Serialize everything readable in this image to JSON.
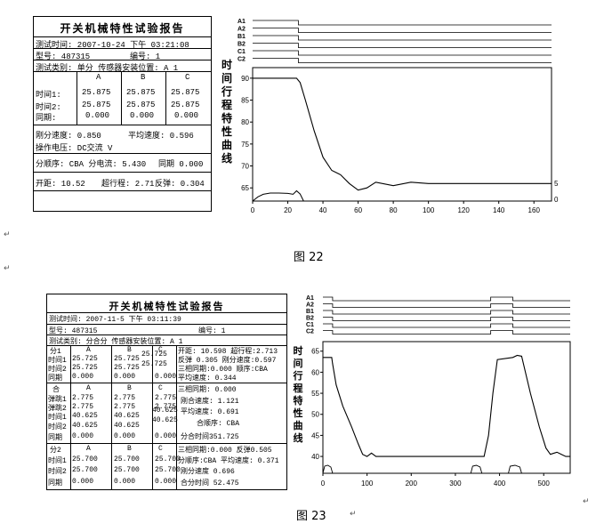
{
  "fig22": {
    "report": {
      "title": "开关机械特性试验报告",
      "test_time": "测试时间:    2007-10-24 下午 03:21:08",
      "model": "型号: 487315",
      "serial": "编号: 1",
      "test_type": "测试类别: 单分 传感器安装位置: A 1",
      "headers": [
        "A",
        "B",
        "C"
      ],
      "time1_label": "时间1:",
      "time1": [
        "25.875",
        "25.875",
        "25.875"
      ],
      "time2_label": "时间2:",
      "time2": [
        "25.875",
        "25.875",
        "25.875"
      ],
      "sync_label": "同期:",
      "sync": [
        "0.000",
        "0.000",
        "0.000"
      ],
      "cut_speed": "刚分速度: 0.850",
      "avg_speed": "平均速度: 0.596",
      "op_voltage": "操作电压: DC交流   V",
      "sequence": "分顺序: CBA  分电流: 5.430",
      "sync2": "同期  0.000",
      "opening": "开距:  10.52",
      "overtravel": "超行程: 2.71",
      "rebound": "反弹: 0.304"
    },
    "chart_data": {
      "type": "line",
      "ylabel": "时间行程特性曲线",
      "channels": [
        "A1",
        "A2",
        "B1",
        "B2",
        "C1",
        "C2"
      ],
      "x_ticks": [
        "0",
        "20",
        "40",
        "60",
        "80",
        "100",
        "120",
        "140",
        "160"
      ],
      "y_ticks": [
        "90",
        "85",
        "80",
        "75",
        "70",
        "65"
      ],
      "right_ticks": [
        "5",
        "0"
      ],
      "xlim": [
        0,
        170
      ],
      "ylim": [
        62,
        92
      ],
      "channel_step_x": 26,
      "travel": {
        "x": [
          0,
          20,
          25,
          27,
          30,
          35,
          40,
          45,
          50,
          55,
          60,
          65,
          70,
          80,
          90,
          100,
          120,
          140,
          160,
          170
        ],
        "y": [
          90,
          90,
          90,
          89,
          85,
          78,
          72,
          69,
          68,
          66,
          64.5,
          65,
          66.3,
          65.5,
          66.3,
          66,
          66,
          66,
          66,
          66
        ]
      },
      "current": {
        "x": [
          0,
          3,
          6,
          10,
          15,
          20,
          23,
          25,
          27,
          29
        ],
        "y": [
          0,
          1.3,
          2.1,
          2.5,
          2.5,
          2.4,
          2.1,
          3.2,
          2.2,
          0
        ]
      }
    },
    "caption": "图 22"
  },
  "fig23": {
    "report": {
      "title": "开关机械特性试验报告",
      "test_time": "测试时间:  2007-11-5 下午 03:11:39",
      "model": "型号:  487315",
      "serial": "编号: 1",
      "test_type": "测试类别: 分合分  传感器安装位置: A 1",
      "group1_label": "分1",
      "headers": [
        "A",
        "B",
        "C"
      ],
      "g1_rows": [
        {
          "label": "时间1",
          "vals": [
            "25.725",
            "25.725",
            "25.725"
          ]
        },
        {
          "label": "时间2",
          "vals": [
            "25.725",
            "25.725",
            "25.725"
          ]
        },
        {
          "label": "同期",
          "vals": [
            "0.000",
            "0.000",
            "0.000"
          ]
        }
      ],
      "g1_right": [
        "开距: 10.598 超行程:2.713",
        "反弹 0.305  刚分速度:0.597",
        "三相同期:0.000 顺序:CBA",
        "平均速度: 0.344"
      ],
      "group2_label": "合",
      "g2_rows": [
        {
          "label": "弹跳1",
          "vals": [
            "2.775",
            "2.775",
            "2.775"
          ]
        },
        {
          "label": "弹跳2",
          "vals": [
            "2.775",
            "2.775",
            "2.775"
          ]
        },
        {
          "label": "时间1",
          "vals": [
            "40.625",
            "40.625",
            "40.625"
          ]
        },
        {
          "label": "时间2",
          "vals": [
            "40.625",
            "40.625",
            "40.625"
          ]
        },
        {
          "label": "同期",
          "vals": [
            "0.000",
            "0.000",
            "0.000"
          ]
        }
      ],
      "g2_right": [
        "三相同期: 0.000",
        "刚合速度: 1.121",
        "平均速度: 0.691",
        "合顺序: CBA",
        "分合时间351.725"
      ],
      "group3_label": "分2",
      "g3_rows": [
        {
          "label": "时间1",
          "vals": [
            "25.700",
            "25.700",
            "25.700"
          ]
        },
        {
          "label": "时间2",
          "vals": [
            "25.700",
            "25.700",
            "25.700"
          ]
        },
        {
          "label": "同期",
          "vals": [
            "0.000",
            "0.000",
            "0.000"
          ]
        }
      ],
      "g3_right": [
        "三相同期:0.000 反弹0.505",
        "分顺序:CBA 平均速度: 0.371",
        "刚分速度 0.696",
        "合分时间 52.475"
      ]
    },
    "chart_data": {
      "type": "line",
      "ylabel": "时间行程特性曲线",
      "channels": [
        "A1",
        "A2",
        "B1",
        "B2",
        "C1",
        "C2"
      ],
      "x_ticks": [
        "0",
        "100",
        "200",
        "300",
        "400",
        "500"
      ],
      "y_ticks": [
        "65",
        "60",
        "55",
        "50",
        "45",
        "40"
      ],
      "xlim": [
        0,
        560
      ],
      "ylim": [
        36,
        66
      ],
      "channel_steps": [
        22,
        380,
        430
      ],
      "travel": {
        "x": [
          0,
          20,
          22,
          30,
          45,
          65,
          80,
          90,
          100,
          110,
          120,
          150,
          250,
          340,
          365,
          375,
          385,
          395,
          430,
          440,
          450,
          470,
          490,
          505,
          515,
          530,
          540,
          550,
          560
        ],
        "y": [
          63.5,
          63.5,
          62,
          57,
          52,
          47,
          43,
          40.5,
          40,
          40.8,
          40,
          40,
          40,
          40,
          40,
          45,
          55,
          63,
          63.5,
          64,
          63.8,
          55,
          47,
          42,
          40.5,
          41,
          40.5,
          40,
          40
        ]
      }
    },
    "caption": "图 23"
  }
}
